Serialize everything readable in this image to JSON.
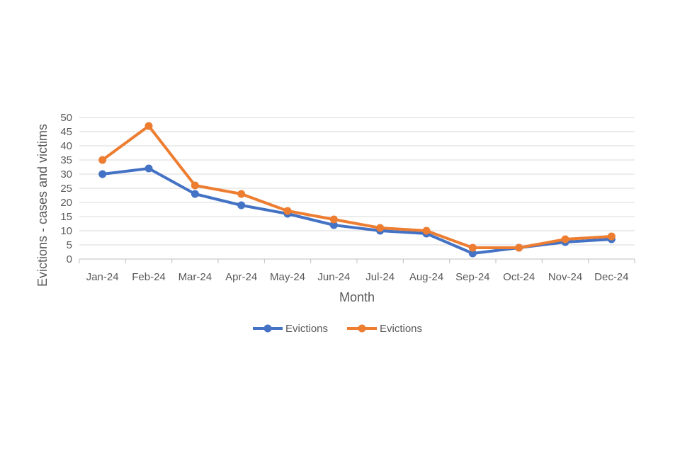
{
  "chart_data": {
    "type": "line",
    "title": "",
    "xlabel": "Month",
    "ylabel": "Evictions - cases and victims",
    "categories": [
      "Jan-24",
      "Feb-24",
      "Mar-24",
      "Apr-24",
      "May-24",
      "Jun-24",
      "Jul-24",
      "Aug-24",
      "Sep-24",
      "Oct-24",
      "Nov-24",
      "Dec-24"
    ],
    "ylim": [
      0,
      50
    ],
    "yticks": [
      0,
      5,
      10,
      15,
      20,
      25,
      30,
      35,
      40,
      45,
      50
    ],
    "grid": true,
    "legend_position": "bottom",
    "series": [
      {
        "name": "Evictions",
        "color": "#4472C4",
        "values": [
          30,
          32,
          23,
          19,
          16,
          12,
          10,
          9,
          2,
          4,
          6,
          7
        ]
      },
      {
        "name": "Evictions",
        "color": "#ED7D31",
        "values": [
          35,
          47,
          26,
          23,
          17,
          14,
          11,
          10,
          4,
          4,
          7,
          8
        ]
      }
    ]
  }
}
